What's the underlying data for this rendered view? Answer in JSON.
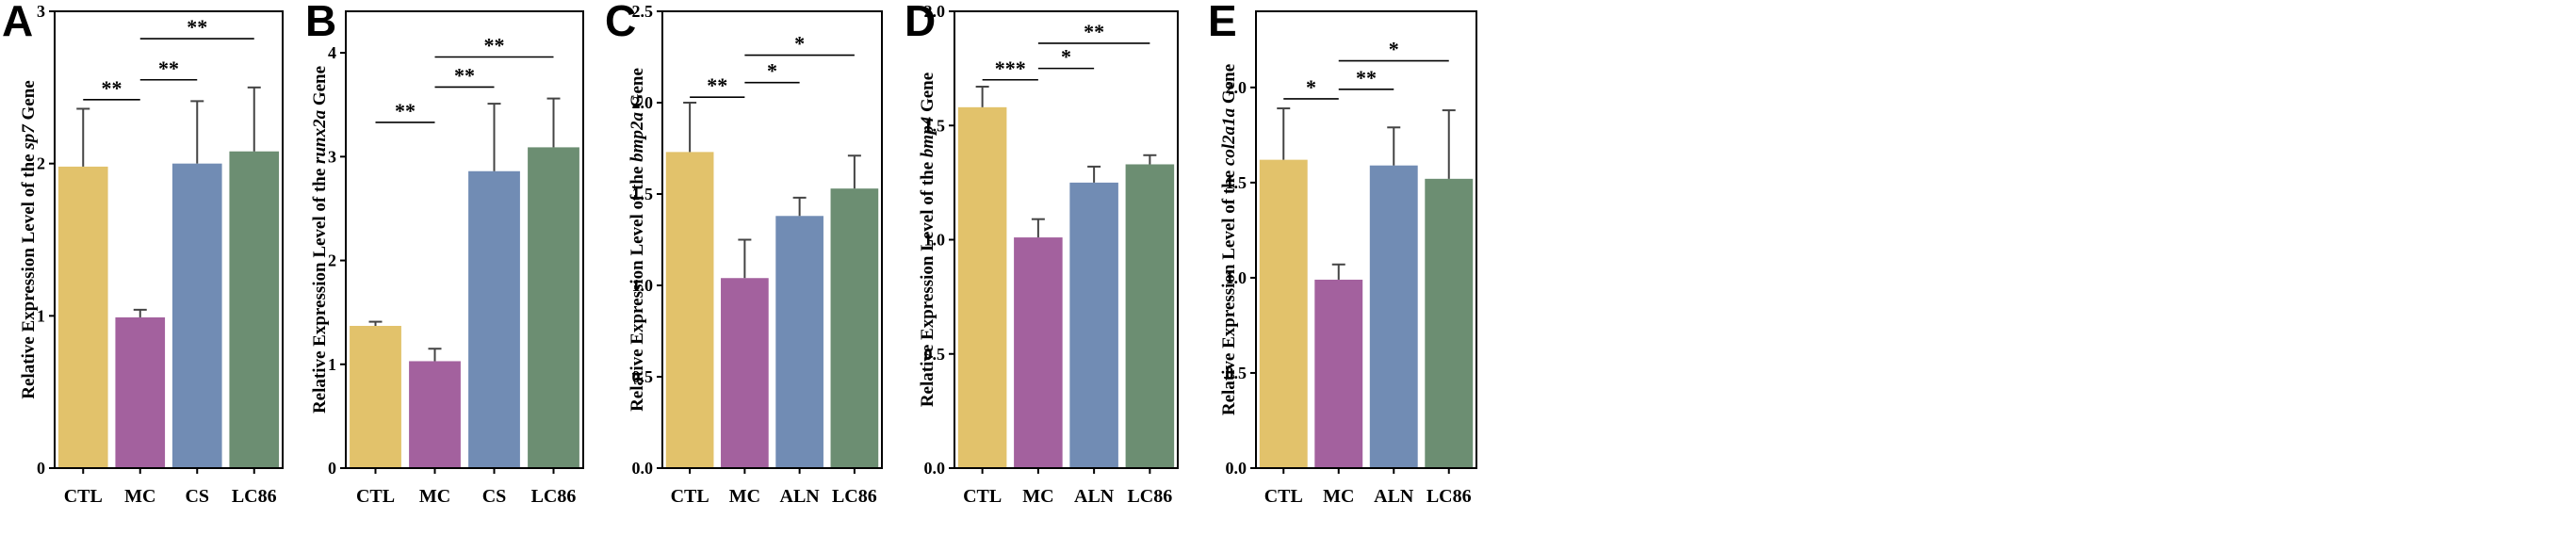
{
  "colors": {
    "CTL": "#e2c26b",
    "MC": "#a3619e",
    "CS": "#718cb4",
    "ALN": "#718cb4",
    "LC86": "#6c8e72",
    "axis": "#000000"
  },
  "chart_data": [
    {
      "type": "bar",
      "panel": "A",
      "ylabel_prefix": "Relative Expression Level of the ",
      "gene": "sp7",
      "ylabel_suffix": " Gene",
      "categories": [
        "CTL",
        "MC",
        "CS",
        "LC86"
      ],
      "values": [
        1.98,
        0.99,
        2.0,
        2.08
      ],
      "errors": [
        0.38,
        0.05,
        0.41,
        0.42
      ],
      "ylim": [
        0,
        3.0
      ],
      "yticks": [
        0,
        1,
        2,
        3
      ],
      "ytick_labels": [
        "0",
        "1",
        "2",
        "3"
      ],
      "significance": [
        {
          "from": 0,
          "to": 1,
          "label": "**",
          "y": 2.42
        },
        {
          "from": 1,
          "to": 2,
          "label": "**",
          "y": 2.55
        },
        {
          "from": 1,
          "to": 3,
          "label": "**",
          "y": 2.82
        }
      ]
    },
    {
      "type": "bar",
      "panel": "B",
      "ylabel_prefix": "Relative Expression Level of the ",
      "gene": "runx2a",
      "ylabel_suffix": " Gene",
      "categories": [
        "CTL",
        "MC",
        "CS",
        "LC86"
      ],
      "values": [
        1.37,
        1.03,
        2.86,
        3.09
      ],
      "errors": [
        0.04,
        0.12,
        0.65,
        0.47
      ],
      "ylim": [
        0,
        4.4
      ],
      "yticks": [
        0,
        1,
        2,
        3,
        4
      ],
      "ytick_labels": [
        "0",
        "1",
        "2",
        "3",
        "4"
      ],
      "significance": [
        {
          "from": 0,
          "to": 1,
          "label": "**",
          "y": 3.33
        },
        {
          "from": 1,
          "to": 2,
          "label": "**",
          "y": 3.67
        },
        {
          "from": 1,
          "to": 3,
          "label": "**",
          "y": 3.96
        }
      ]
    },
    {
      "type": "bar",
      "panel": "C",
      "ylabel_prefix": "Relative Expression Level of the ",
      "gene": "bmp2a",
      "ylabel_suffix": " Gene",
      "categories": [
        "CTL",
        "MC",
        "ALN",
        "LC86"
      ],
      "values": [
        1.73,
        1.04,
        1.38,
        1.53
      ],
      "errors": [
        0.27,
        0.21,
        0.1,
        0.18
      ],
      "ylim": [
        0,
        2.5
      ],
      "yticks": [
        0,
        0.5,
        1.0,
        1.5,
        2.0,
        2.5
      ],
      "ytick_labels": [
        "0.0",
        "0.5",
        "1.0",
        "1.5",
        "2.0",
        "2.5"
      ],
      "significance": [
        {
          "from": 0,
          "to": 1,
          "label": "**",
          "y": 2.03
        },
        {
          "from": 1,
          "to": 2,
          "label": "*",
          "y": 2.11
        },
        {
          "from": 1,
          "to": 3,
          "label": "*",
          "y": 2.26
        }
      ]
    },
    {
      "type": "bar",
      "panel": "D",
      "ylabel_prefix": "Relative Expression Level of the ",
      "gene": "bmp4",
      "ylabel_suffix": " Gene",
      "categories": [
        "CTL",
        "MC",
        "ALN",
        "LC86"
      ],
      "values": [
        1.58,
        1.01,
        1.25,
        1.33
      ],
      "errors": [
        0.09,
        0.08,
        0.07,
        0.04
      ],
      "ylim": [
        0,
        2.0
      ],
      "yticks": [
        0,
        0.5,
        1.0,
        1.5,
        2.0
      ],
      "ytick_labels": [
        "0.0",
        "0.5",
        "1.0",
        "1.5",
        "2.0"
      ],
      "significance": [
        {
          "from": 0,
          "to": 1,
          "label": "***",
          "y": 1.7
        },
        {
          "from": 1,
          "to": 2,
          "label": "*",
          "y": 1.75
        },
        {
          "from": 1,
          "to": 3,
          "label": "**",
          "y": 1.86
        }
      ]
    },
    {
      "type": "bar",
      "panel": "E",
      "ylabel_prefix": "Relative Expression Level of the ",
      "gene": "col2a1a",
      "ylabel_suffix": " Gene",
      "categories": [
        "CTL",
        "MC",
        "ALN",
        "LC86"
      ],
      "values": [
        1.62,
        0.99,
        1.59,
        1.52
      ],
      "errors": [
        0.27,
        0.08,
        0.2,
        0.36
      ],
      "ylim": [
        0,
        2.4
      ],
      "yticks": [
        0,
        0.5,
        1.0,
        1.5,
        2.0
      ],
      "ytick_labels": [
        "0.0",
        "0.5",
        "1.0",
        "1.5",
        "2.0"
      ],
      "significance": [
        {
          "from": 0,
          "to": 1,
          "label": "*",
          "y": 1.94
        },
        {
          "from": 1,
          "to": 2,
          "label": "**",
          "y": 1.99
        },
        {
          "from": 1,
          "to": 3,
          "label": "*",
          "y": 2.14
        }
      ]
    }
  ]
}
